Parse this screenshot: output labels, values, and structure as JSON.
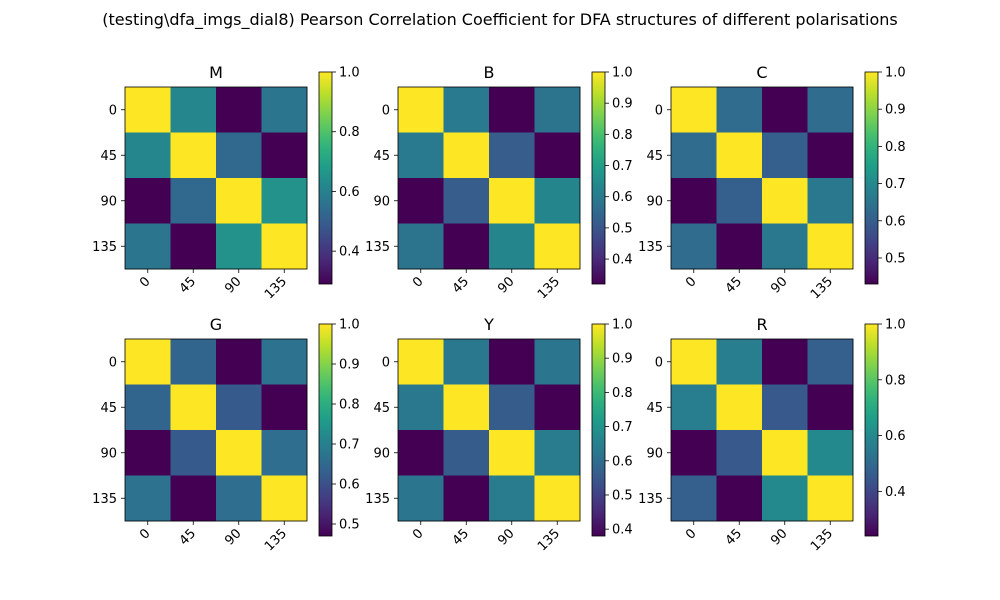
{
  "title": "(testing\\dfa_imgs_dial8) Pearson Correlation Coefficient for DFA structures of different polarisations",
  "chart_data": [
    {
      "type": "heatmap",
      "title": "M",
      "labels": [
        "0",
        "45",
        "90",
        "135"
      ],
      "matrix": [
        [
          1.0,
          0.62,
          0.29,
          0.57
        ],
        [
          0.62,
          1.0,
          0.53,
          0.29
        ],
        [
          0.29,
          0.53,
          1.0,
          0.65
        ],
        [
          0.57,
          0.29,
          0.65,
          1.0
        ]
      ],
      "vmin": 0.29,
      "vmax": 1.0,
      "cbar_ticks": [
        0.4,
        0.6,
        0.8,
        1.0
      ],
      "cbar_labels": [
        "0.4",
        "0.6",
        "0.8",
        "1.0"
      ]
    },
    {
      "type": "heatmap",
      "title": "B",
      "labels": [
        "0",
        "45",
        "90",
        "135"
      ],
      "matrix": [
        [
          1.0,
          0.6,
          0.32,
          0.58
        ],
        [
          0.6,
          1.0,
          0.52,
          0.32
        ],
        [
          0.32,
          0.52,
          1.0,
          0.63
        ],
        [
          0.58,
          0.32,
          0.63,
          1.0
        ]
      ],
      "vmin": 0.32,
      "vmax": 1.0,
      "cbar_ticks": [
        0.4,
        0.5,
        0.6,
        0.7,
        0.8,
        0.9,
        1.0
      ],
      "cbar_labels": [
        "0.4",
        "0.5",
        "0.6",
        "0.7",
        "0.8",
        "0.9",
        "1.0"
      ]
    },
    {
      "type": "heatmap",
      "title": "C",
      "labels": [
        "0",
        "45",
        "90",
        "135"
      ],
      "matrix": [
        [
          1.0,
          0.63,
          0.43,
          0.63
        ],
        [
          0.63,
          1.0,
          0.6,
          0.43
        ],
        [
          0.43,
          0.6,
          1.0,
          0.66
        ],
        [
          0.63,
          0.43,
          0.66,
          1.0
        ]
      ],
      "vmin": 0.43,
      "vmax": 1.0,
      "cbar_ticks": [
        0.5,
        0.6,
        0.7,
        0.8,
        0.9,
        1.0
      ],
      "cbar_labels": [
        "0.5",
        "0.6",
        "0.7",
        "0.8",
        "0.9",
        "1.0"
      ]
    },
    {
      "type": "heatmap",
      "title": "G",
      "labels": [
        "0",
        "45",
        "90",
        "135"
      ],
      "matrix": [
        [
          1.0,
          0.64,
          0.47,
          0.67
        ],
        [
          0.64,
          1.0,
          0.62,
          0.47
        ],
        [
          0.47,
          0.62,
          1.0,
          0.66
        ],
        [
          0.67,
          0.47,
          0.66,
          1.0
        ]
      ],
      "vmin": 0.47,
      "vmax": 1.0,
      "cbar_ticks": [
        0.5,
        0.6,
        0.7,
        0.8,
        0.9,
        1.0
      ],
      "cbar_labels": [
        "0.5",
        "0.6",
        "0.7",
        "0.8",
        "0.9",
        "1.0"
      ]
    },
    {
      "type": "heatmap",
      "title": "Y",
      "labels": [
        "0",
        "45",
        "90",
        "135"
      ],
      "matrix": [
        [
          1.0,
          0.63,
          0.38,
          0.62
        ],
        [
          0.63,
          1.0,
          0.56,
          0.38
        ],
        [
          0.38,
          0.56,
          1.0,
          0.64
        ],
        [
          0.62,
          0.38,
          0.64,
          1.0
        ]
      ],
      "vmin": 0.38,
      "vmax": 1.0,
      "cbar_ticks": [
        0.4,
        0.5,
        0.6,
        0.7,
        0.8,
        0.9,
        1.0
      ],
      "cbar_labels": [
        "0.4",
        "0.5",
        "0.6",
        "0.7",
        "0.8",
        "0.9",
        "1.0"
      ]
    },
    {
      "type": "heatmap",
      "title": "R",
      "labels": [
        "0",
        "45",
        "90",
        "135"
      ],
      "matrix": [
        [
          1.0,
          0.56,
          0.24,
          0.47
        ],
        [
          0.56,
          1.0,
          0.45,
          0.24
        ],
        [
          0.24,
          0.45,
          1.0,
          0.6
        ],
        [
          0.47,
          0.24,
          0.6,
          1.0
        ]
      ],
      "vmin": 0.24,
      "vmax": 1.0,
      "cbar_ticks": [
        0.4,
        0.6,
        0.8,
        1.0
      ],
      "cbar_labels": [
        "0.4",
        "0.6",
        "0.8",
        "1.0"
      ]
    }
  ]
}
